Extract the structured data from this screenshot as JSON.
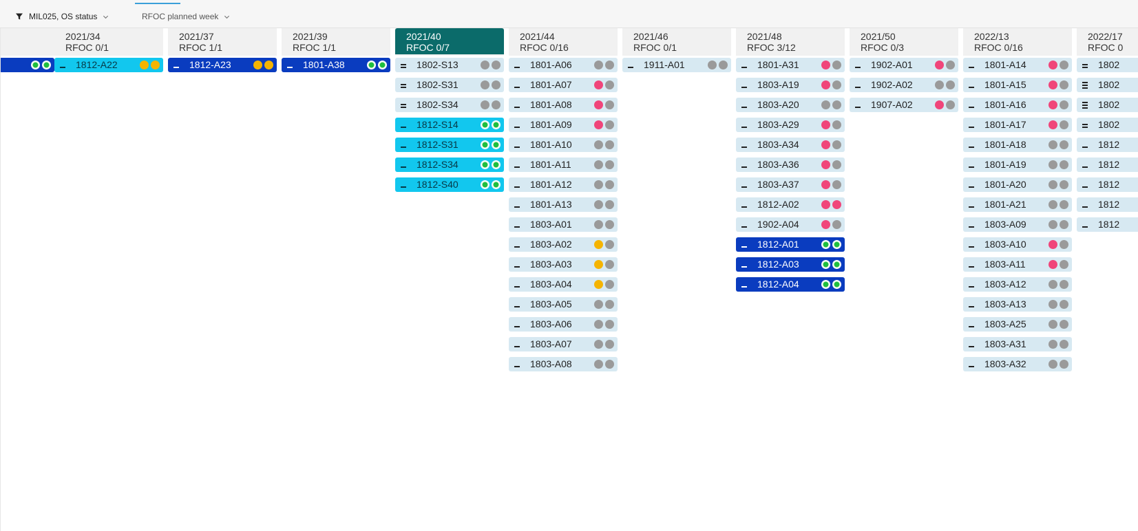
{
  "toolbar": {
    "filter_label": "MIL025, OS status",
    "planned_label": "RFOC planned week",
    "filter_icon": "filter-icon",
    "chevron_icon": "chevron-down-icon"
  },
  "colors": {
    "card_default": "#d7e9f2",
    "card_cyan": "#12c7ee",
    "card_navy": "#0a3cbf",
    "header_active": "#0b6b6a",
    "dot_grey": "#9a9a9a",
    "dot_red": "#f0457a",
    "dot_yellow": "#f5b400",
    "dot_green": "#1fbf3e"
  },
  "columns": [
    {
      "week": "",
      "rfoc": "",
      "active": false,
      "cards": [
        {
          "label": "",
          "style": "navy",
          "handle": "none",
          "dots": [
            "green",
            "green"
          ]
        }
      ]
    },
    {
      "week": "2021/34",
      "rfoc": "RFOC 0/1",
      "active": false,
      "cards": [
        {
          "label": "1812-A22",
          "style": "cyan",
          "handle": "single",
          "dots": [
            "yellow",
            "yellow"
          ]
        }
      ]
    },
    {
      "week": "2021/37",
      "rfoc": "RFOC 1/1",
      "active": false,
      "cards": [
        {
          "label": "1812-A23",
          "style": "navy",
          "handle": "single",
          "dots": [
            "yellow",
            "yellow"
          ]
        }
      ]
    },
    {
      "week": "2021/39",
      "rfoc": "RFOC 1/1",
      "active": false,
      "cards": [
        {
          "label": "1801-A38",
          "style": "navy",
          "handle": "single",
          "dots": [
            "green",
            "green"
          ]
        }
      ]
    },
    {
      "week": "2021/40",
      "rfoc": "RFOC 0/7",
      "active": true,
      "cards": [
        {
          "label": "1802-S13",
          "style": "default",
          "handle": "double",
          "dots": [
            "grey",
            "grey"
          ]
        },
        {
          "label": "1802-S31",
          "style": "default",
          "handle": "double",
          "dots": [
            "grey",
            "grey"
          ]
        },
        {
          "label": "1802-S34",
          "style": "default",
          "handle": "double",
          "dots": [
            "grey",
            "grey"
          ]
        },
        {
          "label": "1812-S14",
          "style": "cyan",
          "handle": "single",
          "dots": [
            "green",
            "green"
          ]
        },
        {
          "label": "1812-S31",
          "style": "cyan",
          "handle": "single",
          "dots": [
            "green",
            "green"
          ]
        },
        {
          "label": "1812-S34",
          "style": "cyan",
          "handle": "single",
          "dots": [
            "green",
            "green"
          ]
        },
        {
          "label": "1812-S40",
          "style": "cyan",
          "handle": "single",
          "dots": [
            "green",
            "green"
          ]
        }
      ]
    },
    {
      "week": "2021/44",
      "rfoc": "RFOC 0/16",
      "active": false,
      "cards": [
        {
          "label": "1801-A06",
          "style": "default",
          "handle": "single",
          "dots": [
            "grey",
            "grey"
          ]
        },
        {
          "label": "1801-A07",
          "style": "default",
          "handle": "single",
          "dots": [
            "red",
            "grey"
          ]
        },
        {
          "label": "1801-A08",
          "style": "default",
          "handle": "single",
          "dots": [
            "red",
            "grey"
          ]
        },
        {
          "label": "1801-A09",
          "style": "default",
          "handle": "single",
          "dots": [
            "red",
            "grey"
          ]
        },
        {
          "label": "1801-A10",
          "style": "default",
          "handle": "single",
          "dots": [
            "grey",
            "grey"
          ]
        },
        {
          "label": "1801-A11",
          "style": "default",
          "handle": "single",
          "dots": [
            "grey",
            "grey"
          ]
        },
        {
          "label": "1801-A12",
          "style": "default",
          "handle": "single",
          "dots": [
            "grey",
            "grey"
          ]
        },
        {
          "label": "1801-A13",
          "style": "default",
          "handle": "single",
          "dots": [
            "grey",
            "grey"
          ]
        },
        {
          "label": "1803-A01",
          "style": "default",
          "handle": "single",
          "dots": [
            "grey",
            "grey"
          ]
        },
        {
          "label": "1803-A02",
          "style": "default",
          "handle": "single",
          "dots": [
            "yellow",
            "grey"
          ]
        },
        {
          "label": "1803-A03",
          "style": "default",
          "handle": "single",
          "dots": [
            "yellow",
            "grey"
          ]
        },
        {
          "label": "1803-A04",
          "style": "default",
          "handle": "single",
          "dots": [
            "yellow",
            "grey"
          ]
        },
        {
          "label": "1803-A05",
          "style": "default",
          "handle": "single",
          "dots": [
            "grey",
            "grey"
          ]
        },
        {
          "label": "1803-A06",
          "style": "default",
          "handle": "single",
          "dots": [
            "grey",
            "grey"
          ]
        },
        {
          "label": "1803-A07",
          "style": "default",
          "handle": "single",
          "dots": [
            "grey",
            "grey"
          ]
        },
        {
          "label": "1803-A08",
          "style": "default",
          "handle": "single",
          "dots": [
            "grey",
            "grey"
          ]
        }
      ]
    },
    {
      "week": "2021/46",
      "rfoc": "RFOC 0/1",
      "active": false,
      "cards": [
        {
          "label": "1911-A01",
          "style": "default",
          "handle": "single",
          "dots": [
            "grey",
            "grey"
          ]
        }
      ]
    },
    {
      "week": "2021/48",
      "rfoc": "RFOC 3/12",
      "active": false,
      "cards": [
        {
          "label": "1801-A31",
          "style": "default",
          "handle": "single",
          "dots": [
            "red",
            "grey"
          ]
        },
        {
          "label": "1803-A19",
          "style": "default",
          "handle": "single",
          "dots": [
            "red",
            "grey"
          ]
        },
        {
          "label": "1803-A20",
          "style": "default",
          "handle": "single",
          "dots": [
            "grey",
            "grey"
          ]
        },
        {
          "label": "1803-A29",
          "style": "default",
          "handle": "single",
          "dots": [
            "red",
            "grey"
          ]
        },
        {
          "label": "1803-A34",
          "style": "default",
          "handle": "single",
          "dots": [
            "red",
            "grey"
          ]
        },
        {
          "label": "1803-A36",
          "style": "default",
          "handle": "single",
          "dots": [
            "red",
            "grey"
          ]
        },
        {
          "label": "1803-A37",
          "style": "default",
          "handle": "single",
          "dots": [
            "red",
            "grey"
          ]
        },
        {
          "label": "1812-A02",
          "style": "default",
          "handle": "single",
          "dots": [
            "red",
            "red"
          ]
        },
        {
          "label": "1902-A04",
          "style": "default",
          "handle": "single",
          "dots": [
            "red",
            "grey"
          ]
        },
        {
          "label": "1812-A01",
          "style": "navy",
          "handle": "single",
          "dots": [
            "green",
            "green"
          ]
        },
        {
          "label": "1812-A03",
          "style": "navy",
          "handle": "single",
          "dots": [
            "green",
            "green"
          ]
        },
        {
          "label": "1812-A04",
          "style": "navy",
          "handle": "single",
          "dots": [
            "green",
            "green"
          ]
        }
      ]
    },
    {
      "week": "2021/50",
      "rfoc": "RFOC 0/3",
      "active": false,
      "cards": [
        {
          "label": "1902-A01",
          "style": "default",
          "handle": "single",
          "dots": [
            "red",
            "grey"
          ]
        },
        {
          "label": "1902-A02",
          "style": "default",
          "handle": "single",
          "dots": [
            "grey",
            "grey"
          ]
        },
        {
          "label": "1907-A02",
          "style": "default",
          "handle": "single",
          "dots": [
            "red",
            "grey"
          ]
        }
      ]
    },
    {
      "week": "2022/13",
      "rfoc": "RFOC 0/16",
      "active": false,
      "cards": [
        {
          "label": "1801-A14",
          "style": "default",
          "handle": "single",
          "dots": [
            "red",
            "grey"
          ]
        },
        {
          "label": "1801-A15",
          "style": "default",
          "handle": "single",
          "dots": [
            "red",
            "grey"
          ]
        },
        {
          "label": "1801-A16",
          "style": "default",
          "handle": "single",
          "dots": [
            "red",
            "grey"
          ]
        },
        {
          "label": "1801-A17",
          "style": "default",
          "handle": "single",
          "dots": [
            "red",
            "grey"
          ]
        },
        {
          "label": "1801-A18",
          "style": "default",
          "handle": "single",
          "dots": [
            "grey",
            "grey"
          ]
        },
        {
          "label": "1801-A19",
          "style": "default",
          "handle": "single",
          "dots": [
            "grey",
            "grey"
          ]
        },
        {
          "label": "1801-A20",
          "style": "default",
          "handle": "single",
          "dots": [
            "grey",
            "grey"
          ]
        },
        {
          "label": "1801-A21",
          "style": "default",
          "handle": "single",
          "dots": [
            "grey",
            "grey"
          ]
        },
        {
          "label": "1803-A09",
          "style": "default",
          "handle": "single",
          "dots": [
            "grey",
            "grey"
          ]
        },
        {
          "label": "1803-A10",
          "style": "default",
          "handle": "single",
          "dots": [
            "red",
            "grey"
          ]
        },
        {
          "label": "1803-A11",
          "style": "default",
          "handle": "single",
          "dots": [
            "red",
            "grey"
          ]
        },
        {
          "label": "1803-A12",
          "style": "default",
          "handle": "single",
          "dots": [
            "grey",
            "grey"
          ]
        },
        {
          "label": "1803-A13",
          "style": "default",
          "handle": "single",
          "dots": [
            "grey",
            "grey"
          ]
        },
        {
          "label": "1803-A25",
          "style": "default",
          "handle": "single",
          "dots": [
            "grey",
            "grey"
          ]
        },
        {
          "label": "1803-A31",
          "style": "default",
          "handle": "single",
          "dots": [
            "grey",
            "grey"
          ]
        },
        {
          "label": "1803-A32",
          "style": "default",
          "handle": "single",
          "dots": [
            "grey",
            "grey"
          ]
        }
      ]
    },
    {
      "week": "2022/17",
      "rfoc": "RFOC 0",
      "active": false,
      "cards": [
        {
          "label": "1802",
          "style": "default",
          "handle": "double",
          "dots": []
        },
        {
          "label": "1802",
          "style": "default",
          "handle": "triple",
          "dots": []
        },
        {
          "label": "1802",
          "style": "default",
          "handle": "triple",
          "dots": []
        },
        {
          "label": "1802",
          "style": "default",
          "handle": "double",
          "dots": []
        },
        {
          "label": "1812",
          "style": "default",
          "handle": "single",
          "dots": []
        },
        {
          "label": "1812",
          "style": "default",
          "handle": "single",
          "dots": []
        },
        {
          "label": "1812",
          "style": "default",
          "handle": "single",
          "dots": []
        },
        {
          "label": "1812",
          "style": "default",
          "handle": "single",
          "dots": []
        },
        {
          "label": "1812",
          "style": "default",
          "handle": "single",
          "dots": []
        }
      ]
    }
  ]
}
